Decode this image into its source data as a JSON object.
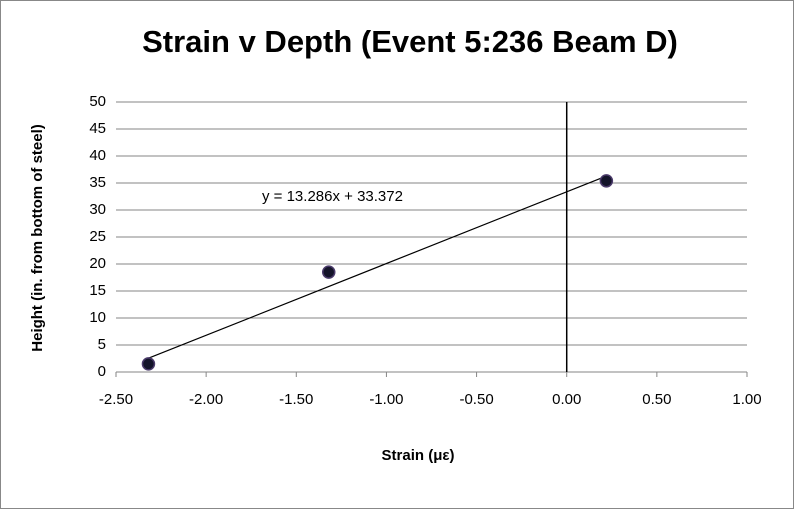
{
  "chart_data": {
    "type": "scatter",
    "title": "Strain v Depth (Event 5:236 Beam D)",
    "xlabel": "Strain (με)",
    "ylabel": "Height (in. from bottom of steel)",
    "x": [
      -2.32,
      -1.32,
      0.22
    ],
    "values": [
      1.5,
      18.5,
      35.4
    ],
    "color": "#14142a",
    "xlim": [
      -2.5,
      1.0
    ],
    "xticks": [
      {
        "value": -2.5,
        "label": "-2.50"
      },
      {
        "value": -2.0,
        "label": "-2.00"
      },
      {
        "value": -1.5,
        "label": "-1.50"
      },
      {
        "value": -1.0,
        "label": "-1.00"
      },
      {
        "value": -0.5,
        "label": "-0.50"
      },
      {
        "value": 0,
        "label": "0.00"
      },
      {
        "value": 0.5,
        "label": "0.50"
      },
      {
        "value": 1.0,
        "label": "1.00"
      }
    ],
    "ylim": [
      0,
      50
    ],
    "yticks": [
      0,
      5,
      10,
      15,
      20,
      25,
      30,
      35,
      40,
      45,
      50
    ],
    "grid": true,
    "trendline": {
      "slope": 13.286,
      "intercept": 33.372,
      "label": "y = 13.286x + 33.372"
    }
  }
}
